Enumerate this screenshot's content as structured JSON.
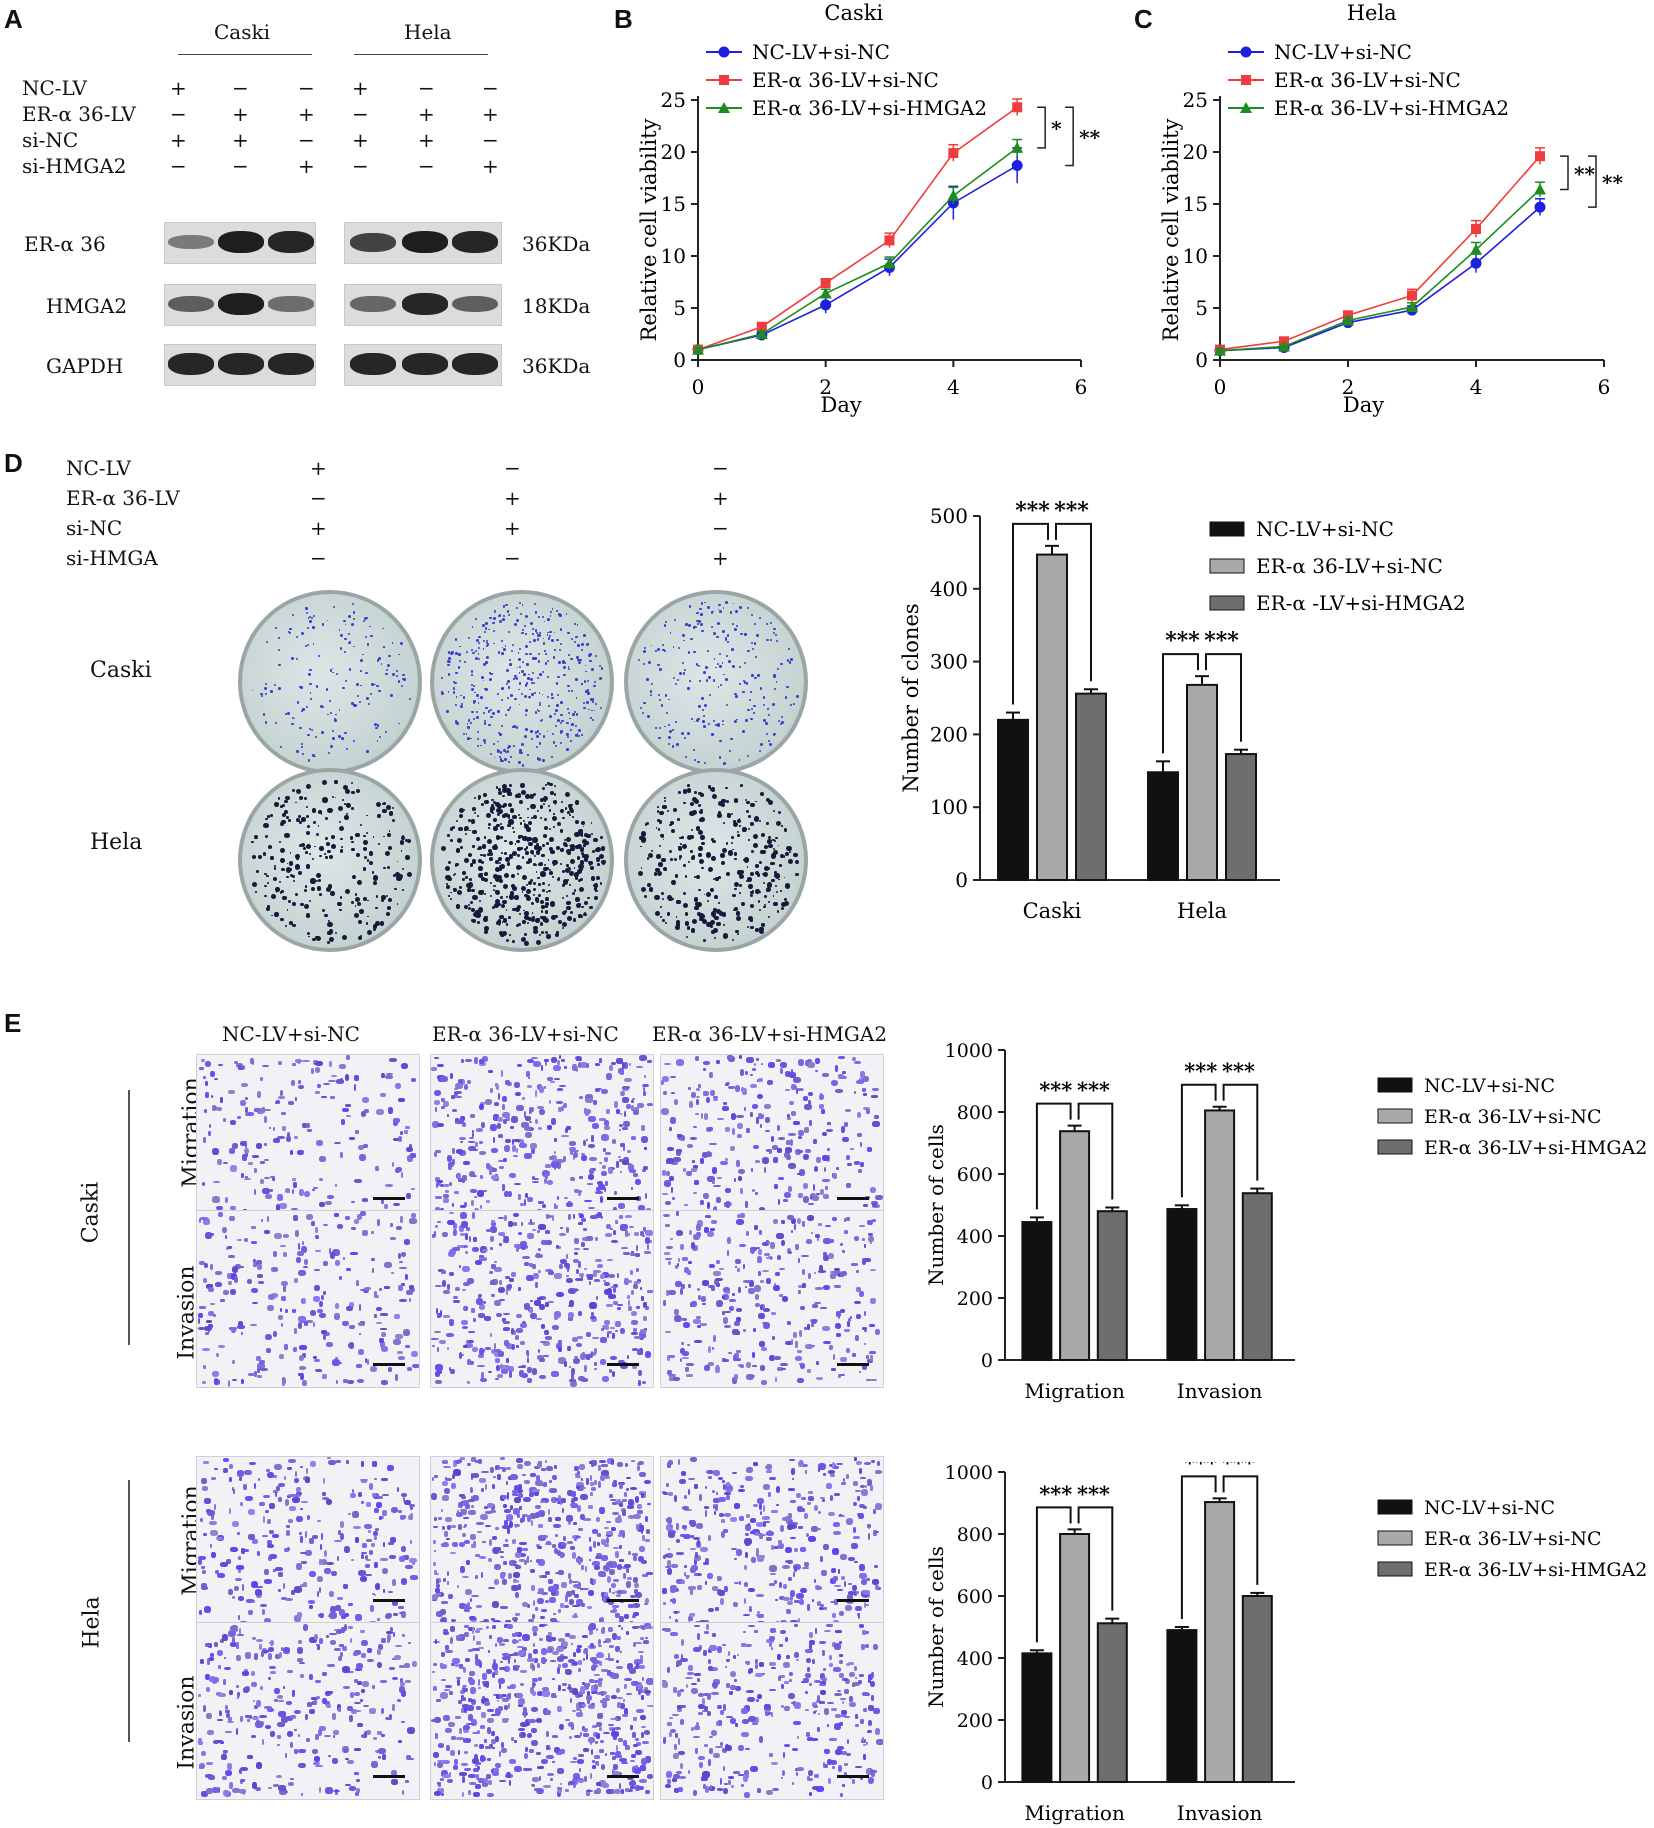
{
  "panel_labels": [
    "A",
    "B",
    "C",
    "D",
    "E"
  ],
  "panelA": {
    "cells": [
      "Caski",
      "Hela"
    ],
    "conditions": [
      {
        "label": "NC-LV",
        "signs": [
          "+",
          "−",
          "−",
          "+",
          "−",
          "−"
        ]
      },
      {
        "label": "ER-α 36-LV",
        "signs": [
          "−",
          "+",
          "+",
          "−",
          "+",
          "+"
        ]
      },
      {
        "label": "si-NC",
        "signs": [
          "+",
          "+",
          "−",
          "+",
          "+",
          "−"
        ]
      },
      {
        "label": "si-HMGA2",
        "signs": [
          "−",
          "−",
          "+",
          "−",
          "−",
          "+"
        ]
      }
    ],
    "blots": [
      {
        "label": "ER-α 36",
        "size": "36KDa",
        "intensity": [
          0.35,
          1.0,
          0.95,
          0.75,
          1.0,
          0.95
        ]
      },
      {
        "label": "HMGA2",
        "size": "18KDa",
        "intensity": [
          0.55,
          1.0,
          0.45,
          0.5,
          0.95,
          0.55
        ]
      },
      {
        "label": "GAPDH",
        "size": "36KDa",
        "intensity": [
          0.95,
          0.95,
          0.95,
          0.95,
          0.95,
          0.95
        ]
      }
    ]
  },
  "lines_legend": [
    "NC-LV+si-NC",
    "ER-α 36-LV+si-NC",
    "ER-α 36-LV+si-HMGA2"
  ],
  "panelD": {
    "conditions": [
      {
        "label": "NC-LV",
        "signs": [
          "+",
          "−",
          "−"
        ]
      },
      {
        "label": "ER-α 36-LV",
        "signs": [
          "−",
          "+",
          "+"
        ]
      },
      {
        "label": "si-NC",
        "signs": [
          "+",
          "+",
          "−"
        ]
      },
      {
        "label": "si-HMGA",
        "signs": [
          "−",
          "−",
          "+"
        ]
      }
    ],
    "row_labels": [
      "Caski",
      "Hela"
    ]
  },
  "panelE": {
    "column_headers": [
      "NC-LV+si-NC",
      "ER-α 36-LV+si-NC",
      "ER-α 36-LV+si-HMGA2"
    ],
    "cell_labels": [
      "Caski",
      "Hela"
    ],
    "row_labels": [
      "Migration",
      "Invasion"
    ]
  },
  "chart_data": [
    {
      "id": "B",
      "type": "line",
      "title": "Caski",
      "xlabel": "Day",
      "ylabel": "Relative cell viability",
      "xlim": [
        0,
        6
      ],
      "ylim": [
        0,
        25
      ],
      "xticks": [
        "0",
        "2",
        "4",
        "6"
      ],
      "yticks": [
        "0",
        "5",
        "10",
        "15",
        "20",
        "25"
      ],
      "x": [
        0,
        1,
        2,
        3,
        4,
        5
      ],
      "series": [
        {
          "name": "NC-LV+si-NC",
          "color": "#1f1fe0",
          "marker": "circle",
          "values": [
            1.0,
            2.4,
            5.3,
            8.9,
            15.1,
            18.7
          ],
          "err": [
            0.2,
            0.3,
            0.8,
            0.8,
            1.6,
            1.7
          ]
        },
        {
          "name": "ER-α 36-LV+si-NC",
          "color": "#f03c3c",
          "marker": "square",
          "values": [
            1.0,
            3.2,
            7.4,
            11.5,
            19.9,
            24.3
          ],
          "err": [
            0.2,
            0.3,
            0.4,
            0.7,
            0.8,
            0.8
          ]
        },
        {
          "name": "ER-α 36-LV+si-HMGA2",
          "color": "#1e8c1e",
          "marker": "triangle",
          "values": [
            1.0,
            2.5,
            6.4,
            9.3,
            15.8,
            20.4
          ],
          "err": [
            0.2,
            0.3,
            0.4,
            0.6,
            0.8,
            0.8
          ]
        }
      ],
      "significance": [
        "*",
        "**"
      ]
    },
    {
      "id": "C",
      "type": "line",
      "title": "Hela",
      "xlabel": "Day",
      "ylabel": "Relative cell viability",
      "xlim": [
        0,
        6
      ],
      "ylim": [
        0,
        25
      ],
      "xticks": [
        "0",
        "2",
        "4",
        "6"
      ],
      "yticks": [
        "0",
        "5",
        "10",
        "15",
        "20",
        "25"
      ],
      "x": [
        0,
        1,
        2,
        3,
        4,
        5
      ],
      "series": [
        {
          "name": "NC-LV+si-NC",
          "color": "#1f1fe0",
          "marker": "circle",
          "values": [
            0.9,
            1.2,
            3.6,
            4.8,
            9.3,
            14.7
          ],
          "err": [
            0.2,
            0.2,
            0.3,
            0.4,
            0.9,
            0.8
          ]
        },
        {
          "name": "ER-α 36-LV+si-NC",
          "color": "#f03c3c",
          "marker": "square",
          "values": [
            1.0,
            1.8,
            4.3,
            6.2,
            12.6,
            19.6
          ],
          "err": [
            0.2,
            0.2,
            0.3,
            0.6,
            0.8,
            0.8
          ]
        },
        {
          "name": "ER-α 36-LV+si-HMGA2",
          "color": "#1e8c1e",
          "marker": "triangle",
          "values": [
            0.9,
            1.3,
            3.8,
            5.1,
            10.6,
            16.4
          ],
          "err": [
            0.2,
            0.2,
            0.3,
            0.4,
            0.7,
            0.7
          ]
        }
      ],
      "significance": [
        "**",
        "**"
      ]
    },
    {
      "id": "D",
      "type": "bar",
      "xlabel": "",
      "ylabel": "Number of clones",
      "ylim": [
        0,
        500
      ],
      "yticks": [
        "0",
        "100",
        "200",
        "300",
        "400",
        "500"
      ],
      "categories": [
        "Caski",
        "Hela"
      ],
      "legend": [
        "NC-LV+si-NC",
        "ER-α 36-LV+si-NC",
        "ER-α -LV+si-HMGA2"
      ],
      "colors": [
        "#111111",
        "#a9a9a9",
        "#6e6e6e"
      ],
      "series": [
        {
          "name": "NC-LV+si-NC",
          "values": [
            220,
            148
          ],
          "err": [
            10,
            15
          ]
        },
        {
          "name": "ER-α 36-LV+si-NC",
          "values": [
            447,
            268
          ],
          "err": [
            12,
            12
          ]
        },
        {
          "name": "ER-α -LV+si-HMGA2",
          "values": [
            256,
            173
          ],
          "err": [
            6,
            6
          ]
        }
      ],
      "significance": [
        "***",
        "***",
        "***",
        "***"
      ]
    },
    {
      "id": "E-Caski",
      "type": "bar",
      "xlabel": "",
      "ylabel": "Number of cells",
      "ylim": [
        0,
        1000
      ],
      "yticks": [
        "0",
        "200",
        "400",
        "600",
        "800",
        "1000"
      ],
      "categories": [
        "Migration",
        "Invasion"
      ],
      "legend": [
        "NC-LV+si-NC",
        "ER-α 36-LV+si-NC",
        "ER-α 36-LV+si-HMGA2"
      ],
      "colors": [
        "#111111",
        "#a9a9a9",
        "#6e6e6e"
      ],
      "series": [
        {
          "name": "NC-LV+si-NC",
          "values": [
            445,
            487
          ],
          "err": [
            15,
            12
          ]
        },
        {
          "name": "ER-α 36-LV+si-NC",
          "values": [
            738,
            805
          ],
          "err": [
            18,
            12
          ]
        },
        {
          "name": "ER-α 36-LV+si-HMGA2",
          "values": [
            480,
            538
          ],
          "err": [
            12,
            15
          ]
        }
      ],
      "significance": [
        "***",
        "***",
        "***",
        "***"
      ]
    },
    {
      "id": "E-Hela",
      "type": "bar",
      "xlabel": "",
      "ylabel": "Number of cells",
      "ylim": [
        0,
        1000
      ],
      "yticks": [
        "0",
        "200",
        "400",
        "600",
        "800",
        "1000"
      ],
      "categories": [
        "Migration",
        "Invasion"
      ],
      "legend": [
        "NC-LV+si-NC",
        "ER-α 36-LV+si-NC",
        "ER-α 36-LV+si-HMGA2"
      ],
      "colors": [
        "#111111",
        "#a9a9a9",
        "#6e6e6e"
      ],
      "series": [
        {
          "name": "NC-LV+si-NC",
          "values": [
            415,
            490
          ],
          "err": [
            10,
            10
          ]
        },
        {
          "name": "ER-α 36-LV+si-NC",
          "values": [
            800,
            903
          ],
          "err": [
            15,
            12
          ]
        },
        {
          "name": "ER-α 36-LV+si-HMGA2",
          "values": [
            512,
            600
          ],
          "err": [
            15,
            10
          ]
        }
      ],
      "significance": [
        "***",
        "***",
        "***",
        "***"
      ]
    }
  ]
}
